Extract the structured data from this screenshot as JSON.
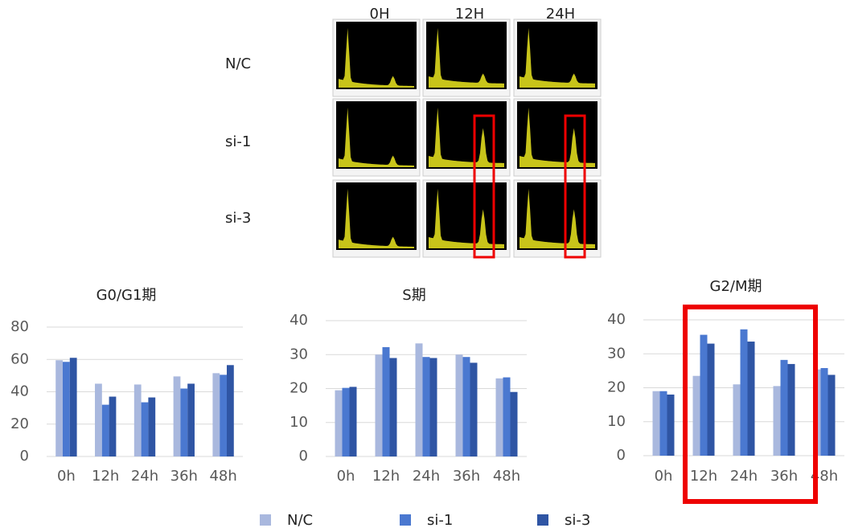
{
  "histogram_panel": {
    "columns": [
      "0H",
      "12H",
      "24H"
    ],
    "rows": [
      "N/C",
      "si-1",
      "si-3"
    ]
  },
  "legend": [
    {
      "name": "N/C",
      "color": "#a9b8de"
    },
    {
      "name": "si-1",
      "color": "#4a78d0"
    },
    {
      "name": "si-3",
      "color": "#2f55a4"
    }
  ],
  "chart_data": [
    {
      "type": "bar",
      "title": "G0/G1期",
      "categories": [
        "0h",
        "12h",
        "24h",
        "36h",
        "48h"
      ],
      "series": [
        {
          "values": [
            59.5,
            45,
            44.5,
            49.5,
            51.5
          ]
        },
        {
          "values": [
            58.5,
            32,
            33.5,
            42,
            50.5
          ]
        },
        {
          "values": [
            61,
            37,
            36.5,
            45,
            56.5
          ]
        }
      ],
      "ylim": [
        0,
        80
      ],
      "yticks": [
        0,
        20,
        40,
        60,
        80
      ],
      "grid": true
    },
    {
      "type": "bar",
      "title": "S期",
      "categories": [
        "0h",
        "12h",
        "24h",
        "36h",
        "48h"
      ],
      "series": [
        {
          "values": [
            19.5,
            30,
            33.3,
            30,
            23
          ]
        },
        {
          "values": [
            20.2,
            32.2,
            29.3,
            29.3,
            23.3
          ]
        },
        {
          "values": [
            20.5,
            29,
            29,
            27.6,
            19
          ]
        }
      ],
      "ylim": [
        0,
        40
      ],
      "yticks": [
        0,
        10,
        20,
        30,
        40
      ],
      "grid": true
    },
    {
      "type": "bar",
      "title": "G2/M期",
      "categories": [
        "0h",
        "12h",
        "24h",
        "36h",
        "48h"
      ],
      "series": [
        {
          "values": [
            19,
            23.5,
            21,
            20.5,
            25.4
          ]
        },
        {
          "values": [
            19,
            35.6,
            37.2,
            28.2,
            25.8
          ]
        },
        {
          "values": [
            18,
            33,
            33.6,
            27,
            23.8
          ]
        }
      ],
      "ylim": [
        0,
        40
      ],
      "yticks": [
        0,
        10,
        20,
        30,
        40
      ],
      "grid": true
    }
  ]
}
